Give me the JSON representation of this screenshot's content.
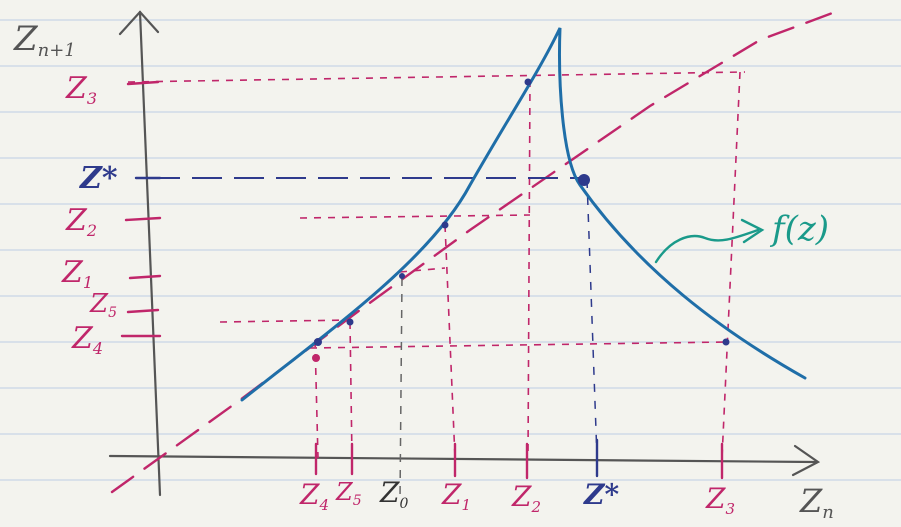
{
  "axes": {
    "y_label": "Z",
    "y_label_sub": "n+1",
    "x_label": "Z",
    "x_label_sub": "n"
  },
  "y_ticks": [
    {
      "id": "z3",
      "text": "Z",
      "sub": "3",
      "color": "#c0266a"
    },
    {
      "id": "zstar",
      "text": "Z*",
      "sub": "",
      "color": "#2e3a8c"
    },
    {
      "id": "z2",
      "text": "Z",
      "sub": "2",
      "color": "#c0266a"
    },
    {
      "id": "z1",
      "text": "Z",
      "sub": "1",
      "color": "#c0266a"
    },
    {
      "id": "z5",
      "text": "Z",
      "sub": "5",
      "color": "#c0266a"
    },
    {
      "id": "z4",
      "text": "Z",
      "sub": "4",
      "color": "#c0266a"
    }
  ],
  "x_ticks": [
    {
      "id": "z4",
      "text": "Z",
      "sub": "4",
      "color": "#c0266a"
    },
    {
      "id": "z5",
      "text": "Z",
      "sub": "5",
      "color": "#c0266a"
    },
    {
      "id": "z0",
      "text": "Z",
      "sub": "0",
      "color": "#333333"
    },
    {
      "id": "z1",
      "text": "Z",
      "sub": "1",
      "color": "#c0266a"
    },
    {
      "id": "z2",
      "text": "Z",
      "sub": "2",
      "color": "#c0266a"
    },
    {
      "id": "zstar",
      "text": "Z*",
      "sub": "",
      "color": "#2e3a8c"
    },
    {
      "id": "z3",
      "text": "Z",
      "sub": "3",
      "color": "#c0266a"
    }
  ],
  "function_label": "f(z)",
  "colors": {
    "curve": "#1f6ea8",
    "iteration": "#c0266a",
    "diagonal": "#c0266a",
    "fixed_point": "#2e3a8c",
    "annotation": "#1a9a8a",
    "axis": "#555555",
    "ruling": "#b9cbe0"
  }
}
